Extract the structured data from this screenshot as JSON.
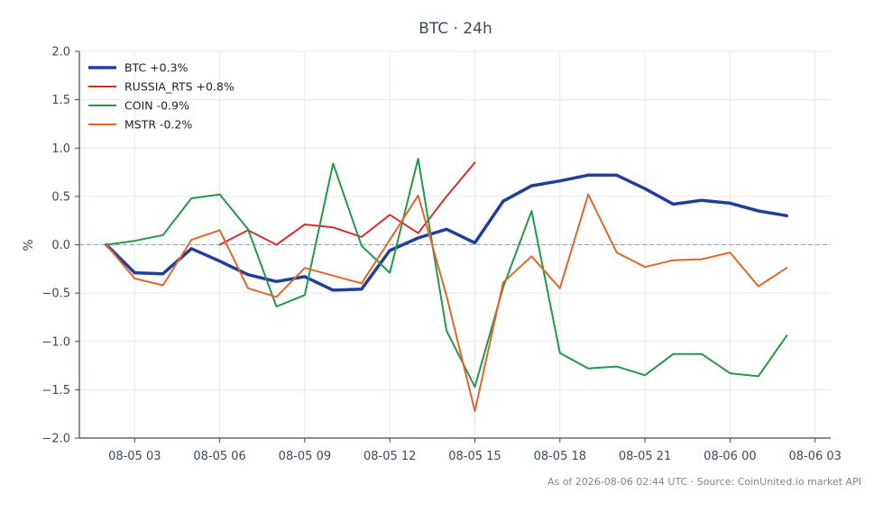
{
  "chart_data": {
    "type": "line",
    "title": "BTC · 24h",
    "xlabel": "",
    "ylabel": "%",
    "ylim": [
      -2.0,
      2.0
    ],
    "xlim": [
      "2026-08-05 01:03",
      "2026-08-06 03:33"
    ],
    "y_ticks": [
      2.0,
      1.5,
      1.0,
      0.5,
      0.0,
      -0.5,
      -1.0,
      -1.5,
      -2.0
    ],
    "y_tick_labels": [
      "2.0",
      "1.5",
      "1.0",
      "0.5",
      "0.0",
      "−0.5",
      "−1.0",
      "−1.5",
      "−2.0"
    ],
    "x_ticks": [
      "2026-08-05 03:00",
      "2026-08-05 06:00",
      "2026-08-05 09:00",
      "2026-08-05 12:00",
      "2026-08-05 15:00",
      "2026-08-05 18:00",
      "2026-08-05 21:00",
      "2026-08-06 00:00",
      "2026-08-06 03:00"
    ],
    "x_tick_labels": [
      "08-05 03",
      "08-05 06",
      "08-05 09",
      "08-05 12",
      "08-05 15",
      "08-05 18",
      "08-05 21",
      "08-06 00",
      "08-06 03"
    ],
    "grid": true,
    "zero_line": true,
    "legend_position": "top-left",
    "footer": "As of 2026-08-06 02:44 UTC · Source: CoinUnited.io market API",
    "colors": {
      "text": "#3a4a5c",
      "axis": "#3a4a5c",
      "grid": "#e6e9ee",
      "zero_line": "#8fa0b3",
      "footer": "#7a8796"
    },
    "series": [
      {
        "name": "BTC +0.3%",
        "color": "#1f3f99",
        "line_width": 3.5,
        "x": [
          "2026-08-05 02:00",
          "2026-08-05 03:00",
          "2026-08-05 04:00",
          "2026-08-05 05:00",
          "2026-08-05 06:00",
          "2026-08-05 07:00",
          "2026-08-05 08:00",
          "2026-08-05 09:00",
          "2026-08-05 10:00",
          "2026-08-05 11:00",
          "2026-08-05 12:00",
          "2026-08-05 13:00",
          "2026-08-05 14:00",
          "2026-08-05 15:00",
          "2026-08-05 16:00",
          "2026-08-05 17:00",
          "2026-08-05 18:00",
          "2026-08-05 19:00",
          "2026-08-05 20:00",
          "2026-08-05 21:00",
          "2026-08-05 22:00",
          "2026-08-05 23:00",
          "2026-08-06 00:00",
          "2026-08-06 01:00",
          "2026-08-06 02:00"
        ],
        "values": [
          0.0,
          -0.29,
          -0.3,
          -0.04,
          -0.17,
          -0.31,
          -0.38,
          -0.33,
          -0.47,
          -0.46,
          -0.06,
          0.07,
          0.16,
          0.02,
          0.45,
          0.61,
          0.66,
          0.72,
          0.72,
          0.58,
          0.42,
          0.46,
          0.43,
          0.35,
          0.3
        ]
      },
      {
        "name": "RUSSIA_RTS +0.8%",
        "color": "#d1312e",
        "line_width": 2,
        "x": [
          "2026-08-05 06:00",
          "2026-08-05 07:00",
          "2026-08-05 08:00",
          "2026-08-05 09:00",
          "2026-08-05 10:00",
          "2026-08-05 11:00",
          "2026-08-05 12:00",
          "2026-08-05 13:00",
          "2026-08-05 14:00",
          "2026-08-05 15:00"
        ],
        "values": [
          0.0,
          0.15,
          0.0,
          0.21,
          0.18,
          0.08,
          0.31,
          0.12,
          0.5,
          0.85
        ]
      },
      {
        "name": "COIN -0.9%",
        "color": "#22994a",
        "line_width": 2,
        "x": [
          "2026-08-05 02:00",
          "2026-08-05 03:00",
          "2026-08-05 04:00",
          "2026-08-05 05:00",
          "2026-08-05 06:00",
          "2026-08-05 07:00",
          "2026-08-05 08:00",
          "2026-08-05 09:00",
          "2026-08-05 10:00",
          "2026-08-05 11:00",
          "2026-08-05 12:00",
          "2026-08-05 13:00",
          "2026-08-05 14:00",
          "2026-08-05 15:00",
          "2026-08-05 16:00",
          "2026-08-05 17:00",
          "2026-08-05 18:00",
          "2026-08-05 19:00",
          "2026-08-05 20:00",
          "2026-08-05 21:00",
          "2026-08-05 22:00",
          "2026-08-05 23:00",
          "2026-08-06 00:00",
          "2026-08-06 01:00",
          "2026-08-06 02:00"
        ],
        "values": [
          0.0,
          0.04,
          0.1,
          0.48,
          0.52,
          0.16,
          -0.64,
          -0.52,
          0.84,
          -0.01,
          -0.29,
          0.89,
          -0.89,
          -1.47,
          -0.44,
          0.35,
          -1.12,
          -1.28,
          -1.26,
          -1.35,
          -1.13,
          -1.13,
          -1.33,
          -1.36,
          -0.94
        ]
      },
      {
        "name": "MSTR -0.2%",
        "color": "#e0662a",
        "line_width": 2,
        "x": [
          "2026-08-05 02:00",
          "2026-08-05 03:00",
          "2026-08-05 04:00",
          "2026-08-05 05:00",
          "2026-08-05 06:00",
          "2026-08-05 07:00",
          "2026-08-05 08:00",
          "2026-08-05 09:00",
          "2026-08-05 10:00",
          "2026-08-05 11:00",
          "2026-08-05 12:00",
          "2026-08-05 13:00",
          "2026-08-05 14:00",
          "2026-08-05 15:00",
          "2026-08-05 16:00",
          "2026-08-05 17:00",
          "2026-08-05 18:00",
          "2026-08-05 19:00",
          "2026-08-05 20:00",
          "2026-08-05 21:00",
          "2026-08-05 22:00",
          "2026-08-05 23:00",
          "2026-08-06 00:00",
          "2026-08-06 01:00",
          "2026-08-06 02:00"
        ],
        "values": [
          0.0,
          -0.35,
          -0.42,
          0.05,
          0.15,
          -0.45,
          -0.54,
          -0.24,
          -0.32,
          -0.4,
          0.05,
          0.51,
          -0.53,
          -1.72,
          -0.39,
          -0.12,
          -0.45,
          0.52,
          -0.08,
          -0.23,
          -0.16,
          -0.15,
          -0.08,
          -0.43,
          -0.24
        ]
      }
    ]
  }
}
